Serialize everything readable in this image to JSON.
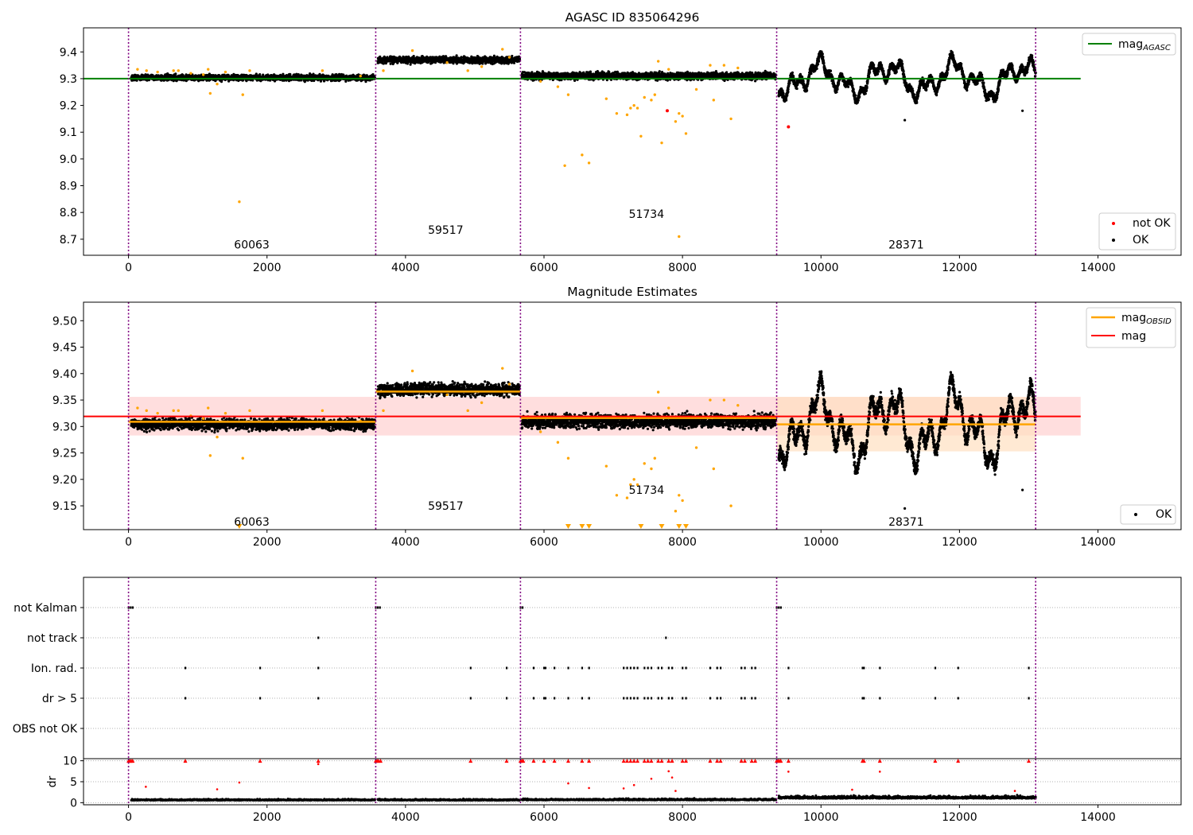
{
  "colors": {
    "ok": "#000000",
    "not_ok": "#ff0000",
    "outlier": "#ffa500",
    "agasc_line": "#008000",
    "obsid_line": "#ffa500",
    "mag_line": "#ff0000",
    "mag_band": "#ffd6d6",
    "obsid_band": "#ffe0c0",
    "obsid_divider": "#800080",
    "grid": "#b0b0b0"
  },
  "chart_data": [
    {
      "type": "scatter",
      "title": "AGASC ID 835064296",
      "xlim": [
        -650,
        15200
      ],
      "ylim": [
        8.64,
        9.49
      ],
      "xticks": [
        0,
        2000,
        4000,
        6000,
        8000,
        10000,
        12000,
        14000
      ],
      "yticks": [
        8.7,
        8.8,
        8.9,
        9.0,
        9.1,
        9.2,
        9.3,
        9.4
      ],
      "ytick_labels": [
        "8.7",
        "8.8",
        "8.9",
        "9.0",
        "9.1",
        "9.2",
        "9.3",
        "9.4"
      ],
      "obsid_bounds": [
        0,
        3570,
        5660,
        9360,
        13100
      ],
      "obsid_labels": [
        {
          "text": "60063",
          "x": 1780,
          "y": 8.68
        },
        {
          "text": "59517",
          "x": 4580,
          "y": 8.735
        },
        {
          "text": "51734",
          "x": 7480,
          "y": 8.795
        },
        {
          "text": "28371",
          "x": 11230,
          "y": 8.68
        }
      ],
      "agasc_mag": 9.3,
      "agasc_x": [
        0,
        13750
      ],
      "legend_top": {
        "position": "top-right",
        "entries": [
          {
            "label": "mag",
            "sub": "AGASC"
          }
        ]
      },
      "legend_bottom": {
        "position": "bottom-right",
        "entries": [
          {
            "label": "not OK"
          },
          {
            "label": "OK"
          }
        ]
      },
      "outliers": [
        [
          130,
          9.335
        ],
        [
          260,
          9.33
        ],
        [
          420,
          9.325
        ],
        [
          650,
          9.33
        ],
        [
          720,
          9.33
        ],
        [
          900,
          9.32
        ],
        [
          1080,
          9.315
        ],
        [
          1150,
          9.335
        ],
        [
          1280,
          9.28
        ],
        [
          1400,
          9.325
        ],
        [
          1750,
          9.33
        ],
        [
          1180,
          9.245
        ],
        [
          1650,
          9.24
        ],
        [
          1600,
          8.84
        ],
        [
          2800,
          9.33
        ],
        [
          3350,
          9.31
        ],
        [
          3680,
          9.33
        ],
        [
          4100,
          9.405
        ],
        [
          4600,
          9.36
        ],
        [
          4900,
          9.33
        ],
        [
          5100,
          9.345
        ],
        [
          5400,
          9.41
        ],
        [
          5500,
          9.38
        ],
        [
          5950,
          9.29
        ],
        [
          6200,
          9.27
        ],
        [
          6300,
          8.975
        ],
        [
          6350,
          9.24
        ],
        [
          6550,
          9.015
        ],
        [
          6650,
          8.985
        ],
        [
          6900,
          9.225
        ],
        [
          7050,
          9.17
        ],
        [
          7200,
          9.165
        ],
        [
          7250,
          9.19
        ],
        [
          7300,
          9.2
        ],
        [
          7350,
          9.19
        ],
        [
          7400,
          9.085
        ],
        [
          7450,
          9.23
        ],
        [
          7550,
          9.22
        ],
        [
          7600,
          9.24
        ],
        [
          7650,
          9.365
        ],
        [
          7700,
          9.06
        ],
        [
          7800,
          9.335
        ],
        [
          7900,
          9.14
        ],
        [
          7950,
          9.17
        ],
        [
          7950,
          8.71
        ],
        [
          8000,
          9.16
        ],
        [
          8050,
          9.095
        ],
        [
          8200,
          9.26
        ],
        [
          8400,
          9.35
        ],
        [
          8450,
          9.22
        ],
        [
          8600,
          9.35
        ],
        [
          8700,
          9.15
        ],
        [
          8800,
          9.34
        ]
      ],
      "not_ok": [
        [
          7780,
          9.18
        ],
        [
          9530,
          9.12
        ]
      ],
      "ok_series": [
        {
          "x_start": 40,
          "x_end": 3560,
          "pattern": "flat",
          "center": 9.304,
          "spread": 0.018,
          "count": 1800
        },
        {
          "x_start": 3600,
          "x_end": 5650,
          "pattern": "flat",
          "center": 9.37,
          "spread": 0.02,
          "count": 1100
        },
        {
          "x_start": 5680,
          "x_end": 9350,
          "pattern": "flat",
          "center": 9.31,
          "spread": 0.022,
          "count": 1900
        },
        {
          "x_start": 9390,
          "x_end": 13100,
          "pattern": "wavy",
          "center": 9.3,
          "spread": 0.08,
          "count": 2600
        }
      ],
      "sparse_ok": [
        [
          11210,
          9.145
        ],
        [
          12910,
          9.18
        ]
      ]
    },
    {
      "type": "scatter",
      "title": "Magnitude Estimates",
      "xlim": [
        -650,
        15200
      ],
      "ylim": [
        9.105,
        9.535
      ],
      "xticks": [
        0,
        2000,
        4000,
        6000,
        8000,
        10000,
        12000,
        14000
      ],
      "yticks": [
        9.15,
        9.2,
        9.25,
        9.3,
        9.35,
        9.4,
        9.45,
        9.5
      ],
      "ytick_labels": [
        "9.15",
        "9.20",
        "9.25",
        "9.30",
        "9.35",
        "9.40",
        "9.45",
        "9.50"
      ],
      "obsid_bounds": [
        0,
        3570,
        5660,
        9360,
        13100
      ],
      "obsid_labels": [
        {
          "text": "60063",
          "x": 1780,
          "y": 9.12
        },
        {
          "text": "59517",
          "x": 4580,
          "y": 9.15
        },
        {
          "text": "51734",
          "x": 7480,
          "y": 9.18
        },
        {
          "text": "28371",
          "x": 11230,
          "y": 9.12
        }
      ],
      "mag": 9.319,
      "mag_band": [
        9.283,
        9.356
      ],
      "mag_x": [
        0,
        13750
      ],
      "obsid_mags": [
        {
          "x": [
            0,
            3570
          ],
          "value": 9.309,
          "band": [
            9.303,
            9.315
          ]
        },
        {
          "x": [
            3570,
            5660
          ],
          "value": 9.366,
          "band": [
            9.36,
            9.372
          ]
        },
        {
          "x": [
            5660,
            9360
          ],
          "value": 9.316,
          "band": [
            9.31,
            9.322
          ]
        },
        {
          "x": [
            9360,
            13100
          ],
          "value": 9.304,
          "band": [
            9.253,
            9.356
          ]
        }
      ],
      "legend_top": {
        "position": "top-right",
        "entries": [
          {
            "label": "mag",
            "sub": "OBSID"
          },
          {
            "label": "mag"
          }
        ]
      },
      "legend_bottom": {
        "position": "bottom-right",
        "entries": [
          {
            "label": "OK"
          }
        ]
      },
      "outliers": [
        [
          130,
          9.335
        ],
        [
          260,
          9.33
        ],
        [
          420,
          9.325
        ],
        [
          650,
          9.33
        ],
        [
          720,
          9.33
        ],
        [
          900,
          9.32
        ],
        [
          1080,
          9.315
        ],
        [
          1150,
          9.335
        ],
        [
          1280,
          9.28
        ],
        [
          1400,
          9.325
        ],
        [
          1750,
          9.33
        ],
        [
          1180,
          9.245
        ],
        [
          1650,
          9.24
        ],
        [
          2800,
          9.33
        ],
        [
          3350,
          9.31
        ],
        [
          3680,
          9.33
        ],
        [
          4100,
          9.405
        ],
        [
          4600,
          9.36
        ],
        [
          4900,
          9.33
        ],
        [
          5100,
          9.345
        ],
        [
          5400,
          9.41
        ],
        [
          5500,
          9.38
        ],
        [
          5950,
          9.29
        ],
        [
          6200,
          9.27
        ],
        [
          6350,
          9.24
        ],
        [
          6900,
          9.225
        ],
        [
          7050,
          9.17
        ],
        [
          7200,
          9.165
        ],
        [
          7250,
          9.19
        ],
        [
          7300,
          9.2
        ],
        [
          7350,
          9.19
        ],
        [
          7450,
          9.23
        ],
        [
          7550,
          9.22
        ],
        [
          7600,
          9.24
        ],
        [
          7650,
          9.365
        ],
        [
          7800,
          9.335
        ],
        [
          7900,
          9.14
        ],
        [
          7950,
          9.17
        ],
        [
          8000,
          9.16
        ],
        [
          8200,
          9.26
        ],
        [
          8400,
          9.35
        ],
        [
          8450,
          9.22
        ],
        [
          8600,
          9.35
        ],
        [
          8700,
          9.15
        ],
        [
          8800,
          9.34
        ]
      ],
      "below_range": [
        1600,
        6350,
        6550,
        6650,
        7400,
        7700,
        7950,
        8050
      ],
      "ok_series": [
        {
          "x_start": 40,
          "x_end": 3560,
          "pattern": "flat",
          "center": 9.304,
          "spread": 0.018,
          "count": 1800
        },
        {
          "x_start": 3600,
          "x_end": 5650,
          "pattern": "flat",
          "center": 9.37,
          "spread": 0.02,
          "count": 1100
        },
        {
          "x_start": 5680,
          "x_end": 9350,
          "pattern": "flat",
          "center": 9.31,
          "spread": 0.022,
          "count": 1900
        },
        {
          "x_start": 9390,
          "x_end": 13100,
          "pattern": "wavy",
          "center": 9.3,
          "spread": 0.08,
          "count": 2600
        }
      ],
      "sparse_ok": [
        [
          11210,
          9.145
        ],
        [
          12910,
          9.18
        ]
      ]
    },
    {
      "type": "scatter",
      "title": "",
      "xlim": [
        -650,
        15200
      ],
      "categories": [
        "not Kalman",
        "not track",
        "Ion. rad.",
        "dr > 5",
        "OBS not OK"
      ],
      "obsid_bounds": [
        0,
        3570,
        5660,
        9360,
        13100
      ],
      "flags": {
        "not Kalman": [
          0,
          30,
          60,
          3570,
          3600,
          3630,
          5660,
          5690,
          9360,
          9390,
          9420
        ],
        "not track": [
          2740,
          7760
        ],
        "Ion. rad.": [
          820,
          1900,
          2740,
          4940,
          5460,
          5850,
          6000,
          6020,
          6150,
          6350,
          6550,
          6650,
          7150,
          7200,
          7250,
          7300,
          7350,
          7450,
          7500,
          7550,
          7650,
          7700,
          7800,
          7850,
          8000,
          8050,
          8400,
          8500,
          8550,
          8850,
          8900,
          9000,
          9050,
          9530,
          10600,
          10620,
          10850,
          11650,
          11980,
          13000
        ],
        "dr > 5": [
          820,
          1900,
          2740,
          4940,
          5460,
          5850,
          6000,
          6020,
          6150,
          6350,
          6550,
          6650,
          7150,
          7200,
          7250,
          7300,
          7350,
          7450,
          7500,
          7550,
          7650,
          7700,
          7800,
          7850,
          8000,
          8050,
          8400,
          8500,
          8550,
          8850,
          8900,
          9000,
          9050,
          9530,
          10600,
          10620,
          10850,
          11650,
          11980,
          13000
        ],
        "OBS not OK": []
      }
    },
    {
      "type": "scatter",
      "title": "",
      "ylabel": "dr",
      "xlim": [
        -650,
        15200
      ],
      "ylim": [
        -0.5,
        10.5
      ],
      "xticks": [
        0,
        2000,
        4000,
        6000,
        8000,
        10000,
        12000,
        14000
      ],
      "yticks": [
        0,
        5,
        10
      ],
      "obsid_bounds": [
        0,
        3570,
        5660,
        9360,
        13100
      ],
      "saturated_x": [
        0,
        20,
        40,
        60,
        820,
        1900,
        2740,
        3570,
        3590,
        3610,
        3640,
        4940,
        5460,
        5660,
        5680,
        5700,
        5850,
        6000,
        6150,
        6350,
        6550,
        6650,
        7150,
        7200,
        7250,
        7300,
        7350,
        7450,
        7500,
        7550,
        7650,
        7700,
        7800,
        7850,
        8000,
        8050,
        8400,
        8500,
        8550,
        8850,
        8900,
        9000,
        9050,
        9360,
        9380,
        9400,
        9420,
        9530,
        10600,
        10620,
        10850,
        11650,
        11980,
        13000
      ],
      "mid_red": [
        [
          250,
          3.8
        ],
        [
          1280,
          3.2
        ],
        [
          1600,
          4.8
        ],
        [
          2740,
          9.2
        ],
        [
          6350,
          4.6
        ],
        [
          6650,
          3.5
        ],
        [
          7150,
          3.4
        ],
        [
          7300,
          4.2
        ],
        [
          7550,
          5.7
        ],
        [
          7800,
          7.5
        ],
        [
          7850,
          6.0
        ],
        [
          7900,
          2.8
        ],
        [
          9530,
          7.4
        ],
        [
          10450,
          3.1
        ],
        [
          10850,
          7.4
        ],
        [
          12800,
          2.8
        ]
      ],
      "segments": [
        {
          "x_start": 40,
          "x_end": 3560,
          "center": 0.55,
          "spread": 0.35,
          "count": 900
        },
        {
          "x_start": 3600,
          "x_end": 5650,
          "center": 0.55,
          "spread": 0.35,
          "count": 600
        },
        {
          "x_start": 5680,
          "x_end": 9350,
          "center": 0.6,
          "spread": 0.4,
          "count": 900
        },
        {
          "x_start": 9390,
          "x_end": 13100,
          "center": 1.0,
          "spread": 0.7,
          "count": 1100
        }
      ]
    }
  ]
}
